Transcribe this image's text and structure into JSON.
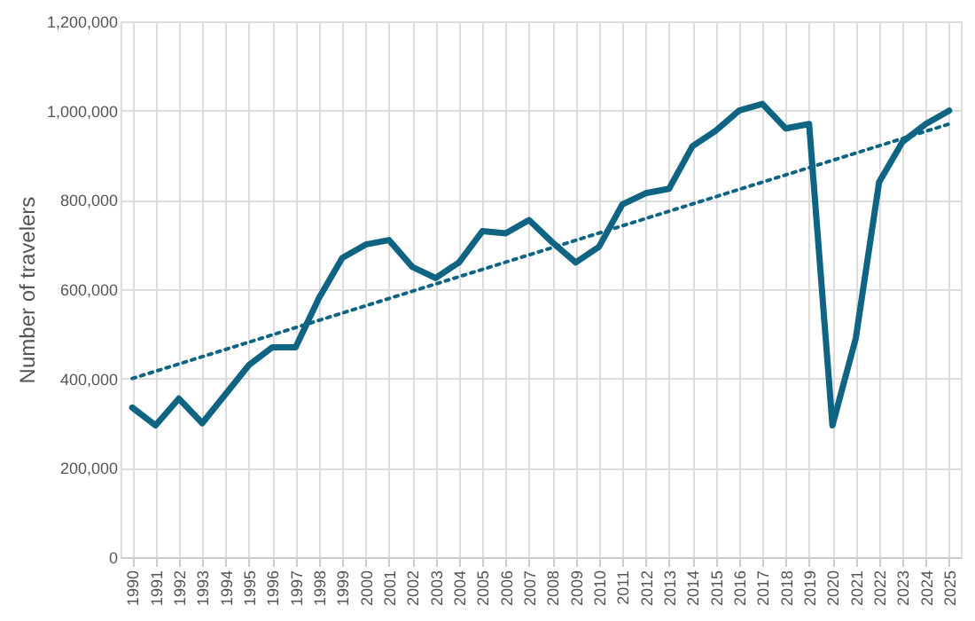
{
  "chart_data": {
    "type": "line",
    "ylabel": "Number of travelers",
    "categories": [
      "1990",
      "1991",
      "1992",
      "1993",
      "1994",
      "1995",
      "1996",
      "1997",
      "1998",
      "1999",
      "2000",
      "2001",
      "2002",
      "2003",
      "2004",
      "2005",
      "2006",
      "2007",
      "2008",
      "2009",
      "2010",
      "2011",
      "2012",
      "2013",
      "2014",
      "2015",
      "2016",
      "2017",
      "2018",
      "2019",
      "2020",
      "2021",
      "2022",
      "2023",
      "2024",
      "2025"
    ],
    "series": [
      {
        "type": "line",
        "color": "#0f6483",
        "line_style": "solid",
        "values": [
          335000,
          295000,
          355000,
          300000,
          365000,
          430000,
          470000,
          470000,
          580000,
          670000,
          700000,
          710000,
          650000,
          625000,
          660000,
          730000,
          725000,
          755000,
          705000,
          660000,
          695000,
          790000,
          815000,
          825000,
          920000,
          955000,
          1000000,
          1015000,
          960000,
          970000,
          295000,
          490000,
          840000,
          930000,
          970000,
          1000000
        ]
      },
      {
        "type": "line",
        "color": "#0f6483",
        "line_style": "dotted",
        "values": [
          400000,
          null,
          null,
          null,
          null,
          null,
          null,
          null,
          null,
          null,
          null,
          null,
          null,
          null,
          null,
          null,
          null,
          null,
          null,
          null,
          null,
          null,
          null,
          null,
          null,
          null,
          null,
          null,
          null,
          null,
          null,
          null,
          null,
          null,
          null,
          970000
        ]
      }
    ],
    "ylim": [
      0,
      1200000
    ],
    "yticks": [
      0,
      {
        "value": 200000,
        "label": "200,000"
      },
      {
        "value": 400000,
        "label": "400,000"
      },
      {
        "value": 600000,
        "label": "600,000"
      },
      {
        "value": 800000,
        "label": "800,000"
      },
      {
        "value": 1000000,
        "label": "1,000,000"
      },
      {
        "value": 1200000,
        "label": "1,200,000"
      }
    ],
    "grid": true,
    "legend": false
  }
}
